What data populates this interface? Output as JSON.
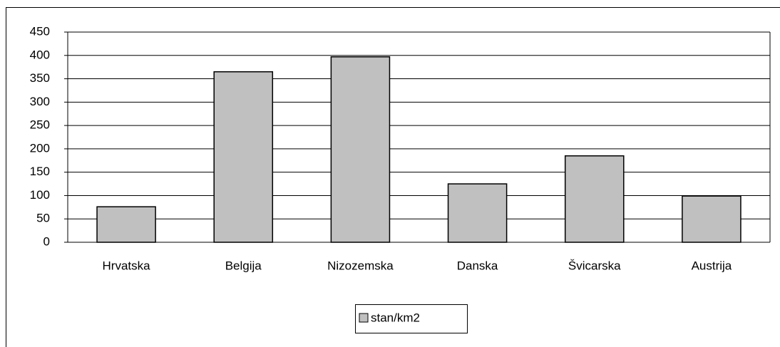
{
  "chart_data": {
    "type": "bar",
    "categories": [
      "Hrvatska",
      "Belgija",
      "Nizozemska",
      "Danska",
      "Švicarska",
      "Austrija"
    ],
    "series": [
      {
        "name": "stan/km2",
        "color": "#c0c0c0",
        "values": [
          76,
          365,
          397,
          125,
          185,
          99
        ]
      }
    ],
    "ylim": [
      0,
      450
    ],
    "yticks": [
      0,
      50,
      100,
      150,
      200,
      250,
      300,
      350,
      400,
      450
    ],
    "grid": true,
    "legend": "bottom"
  }
}
